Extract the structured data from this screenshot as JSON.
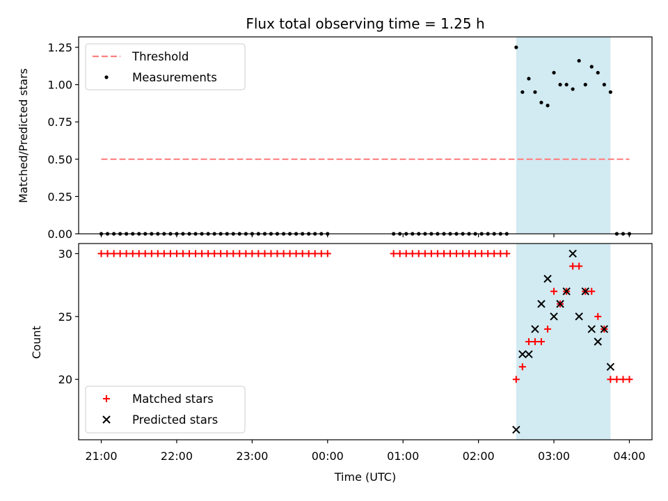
{
  "chart_data": [
    {
      "type": "scatter",
      "title": "Flux total observing time = 1.25 h",
      "xlabel": "",
      "ylabel": "Matched/Predicted stars",
      "ylim": [
        0,
        1.32
      ],
      "yticks": [
        0.0,
        0.25,
        0.5,
        0.75,
        1.0,
        1.25
      ],
      "ytick_labels": [
        "0.00",
        "0.25",
        "0.50",
        "0.75",
        "1.00",
        "1.25"
      ],
      "xlim": [
        -0.3,
        7.3
      ],
      "legend": {
        "position": "top-left",
        "entries": [
          "Threshold",
          "Measurements"
        ]
      },
      "highlight_span": {
        "x": [
          5.5,
          6.75
        ],
        "color": "#add8e6"
      },
      "threshold": {
        "name": "Threshold",
        "y": 0.5,
        "x": [
          0,
          7.0
        ],
        "color": "#ff8080"
      },
      "series": [
        {
          "name": "Measurements",
          "color": "#000000",
          "points": [
            [
              0.0,
              0
            ],
            [
              0.083,
              0
            ],
            [
              0.167,
              0
            ],
            [
              0.25,
              0
            ],
            [
              0.333,
              0
            ],
            [
              0.417,
              0
            ],
            [
              0.5,
              0
            ],
            [
              0.583,
              0
            ],
            [
              0.667,
              0
            ],
            [
              0.75,
              0
            ],
            [
              0.833,
              0
            ],
            [
              0.917,
              0
            ],
            [
              1.0,
              0
            ],
            [
              1.083,
              0
            ],
            [
              1.167,
              0
            ],
            [
              1.25,
              0
            ],
            [
              1.333,
              0
            ],
            [
              1.417,
              0
            ],
            [
              1.5,
              0
            ],
            [
              1.583,
              0
            ],
            [
              1.667,
              0
            ],
            [
              1.75,
              0
            ],
            [
              1.833,
              0
            ],
            [
              1.917,
              0
            ],
            [
              2.0,
              0
            ],
            [
              2.083,
              0
            ],
            [
              2.167,
              0
            ],
            [
              2.25,
              0
            ],
            [
              2.333,
              0
            ],
            [
              2.417,
              0
            ],
            [
              2.5,
              0
            ],
            [
              2.583,
              0
            ],
            [
              2.667,
              0
            ],
            [
              2.75,
              0
            ],
            [
              2.833,
              0
            ],
            [
              2.917,
              0
            ],
            [
              3.0,
              0
            ],
            [
              3.875,
              0
            ],
            [
              3.958,
              0
            ],
            [
              4.042,
              0
            ],
            [
              4.125,
              0
            ],
            [
              4.208,
              0
            ],
            [
              4.292,
              0
            ],
            [
              4.375,
              0
            ],
            [
              4.458,
              0
            ],
            [
              4.542,
              0
            ],
            [
              4.625,
              0
            ],
            [
              4.708,
              0
            ],
            [
              4.792,
              0
            ],
            [
              4.875,
              0
            ],
            [
              4.958,
              0
            ],
            [
              5.042,
              0
            ],
            [
              5.125,
              0
            ],
            [
              5.208,
              0
            ],
            [
              5.292,
              0
            ],
            [
              5.375,
              0
            ],
            [
              5.5,
              1.25
            ],
            [
              5.583,
              0.95
            ],
            [
              5.667,
              1.04
            ],
            [
              5.75,
              0.95
            ],
            [
              5.833,
              0.88
            ],
            [
              5.917,
              0.86
            ],
            [
              6.0,
              1.08
            ],
            [
              6.083,
              1.0
            ],
            [
              6.167,
              1.0
            ],
            [
              6.25,
              0.97
            ],
            [
              6.333,
              1.16
            ],
            [
              6.417,
              1.0
            ],
            [
              6.5,
              1.12
            ],
            [
              6.583,
              1.08
            ],
            [
              6.667,
              1.0
            ],
            [
              6.75,
              0.95
            ],
            [
              6.833,
              0
            ],
            [
              6.917,
              0
            ],
            [
              7.0,
              0
            ]
          ]
        }
      ]
    },
    {
      "type": "scatter",
      "title": "",
      "xlabel": "Time (UTC)",
      "ylabel": "Count",
      "ylim": [
        15.2,
        30.8
      ],
      "yticks": [
        20,
        25,
        30
      ],
      "ytick_labels": [
        "20",
        "25",
        "30"
      ],
      "xlim": [
        -0.3,
        7.3
      ],
      "xticks": [
        0,
        1,
        2,
        3,
        4,
        5,
        6,
        7
      ],
      "xtick_labels": [
        "21:00",
        "22:00",
        "23:00",
        "00:00",
        "01:00",
        "02:00",
        "03:00",
        "04:00"
      ],
      "legend": {
        "position": "bottom-left",
        "entries": [
          "Matched stars",
          "Predicted stars"
        ]
      },
      "highlight_span": {
        "x": [
          5.5,
          6.75
        ],
        "color": "#add8e6"
      },
      "series": [
        {
          "name": "Matched stars",
          "marker": "plus",
          "color": "#ff0000",
          "points": [
            [
              0.0,
              30
            ],
            [
              0.083,
              30
            ],
            [
              0.167,
              30
            ],
            [
              0.25,
              30
            ],
            [
              0.333,
              30
            ],
            [
              0.417,
              30
            ],
            [
              0.5,
              30
            ],
            [
              0.583,
              30
            ],
            [
              0.667,
              30
            ],
            [
              0.75,
              30
            ],
            [
              0.833,
              30
            ],
            [
              0.917,
              30
            ],
            [
              1.0,
              30
            ],
            [
              1.083,
              30
            ],
            [
              1.167,
              30
            ],
            [
              1.25,
              30
            ],
            [
              1.333,
              30
            ],
            [
              1.417,
              30
            ],
            [
              1.5,
              30
            ],
            [
              1.583,
              30
            ],
            [
              1.667,
              30
            ],
            [
              1.75,
              30
            ],
            [
              1.833,
              30
            ],
            [
              1.917,
              30
            ],
            [
              2.0,
              30
            ],
            [
              2.083,
              30
            ],
            [
              2.167,
              30
            ],
            [
              2.25,
              30
            ],
            [
              2.333,
              30
            ],
            [
              2.417,
              30
            ],
            [
              2.5,
              30
            ],
            [
              2.583,
              30
            ],
            [
              2.667,
              30
            ],
            [
              2.75,
              30
            ],
            [
              2.833,
              30
            ],
            [
              2.917,
              30
            ],
            [
              3.0,
              30
            ],
            [
              3.875,
              30
            ],
            [
              3.958,
              30
            ],
            [
              4.042,
              30
            ],
            [
              4.125,
              30
            ],
            [
              4.208,
              30
            ],
            [
              4.292,
              30
            ],
            [
              4.375,
              30
            ],
            [
              4.458,
              30
            ],
            [
              4.542,
              30
            ],
            [
              4.625,
              30
            ],
            [
              4.708,
              30
            ],
            [
              4.792,
              30
            ],
            [
              4.875,
              30
            ],
            [
              4.958,
              30
            ],
            [
              5.042,
              30
            ],
            [
              5.125,
              30
            ],
            [
              5.208,
              30
            ],
            [
              5.292,
              30
            ],
            [
              5.375,
              30
            ],
            [
              5.5,
              20
            ],
            [
              5.583,
              21
            ],
            [
              5.667,
              23
            ],
            [
              5.75,
              23
            ],
            [
              5.833,
              23
            ],
            [
              5.917,
              24
            ],
            [
              6.0,
              27
            ],
            [
              6.083,
              26
            ],
            [
              6.167,
              27
            ],
            [
              6.25,
              29
            ],
            [
              6.333,
              29
            ],
            [
              6.417,
              27
            ],
            [
              6.5,
              27
            ],
            [
              6.583,
              25
            ],
            [
              6.667,
              24
            ],
            [
              6.75,
              20
            ],
            [
              6.833,
              20
            ],
            [
              6.917,
              20
            ],
            [
              7.0,
              20
            ]
          ]
        },
        {
          "name": "Predicted stars",
          "marker": "x",
          "color": "#000000",
          "points": [
            [
              5.5,
              16
            ],
            [
              5.583,
              22
            ],
            [
              5.667,
              22
            ],
            [
              5.75,
              24
            ],
            [
              5.833,
              26
            ],
            [
              5.917,
              28
            ],
            [
              6.0,
              25
            ],
            [
              6.083,
              26
            ],
            [
              6.167,
              27
            ],
            [
              6.25,
              30
            ],
            [
              6.333,
              25
            ],
            [
              6.417,
              27
            ],
            [
              6.5,
              24
            ],
            [
              6.583,
              23
            ],
            [
              6.667,
              24
            ],
            [
              6.75,
              21
            ]
          ]
        }
      ]
    }
  ]
}
